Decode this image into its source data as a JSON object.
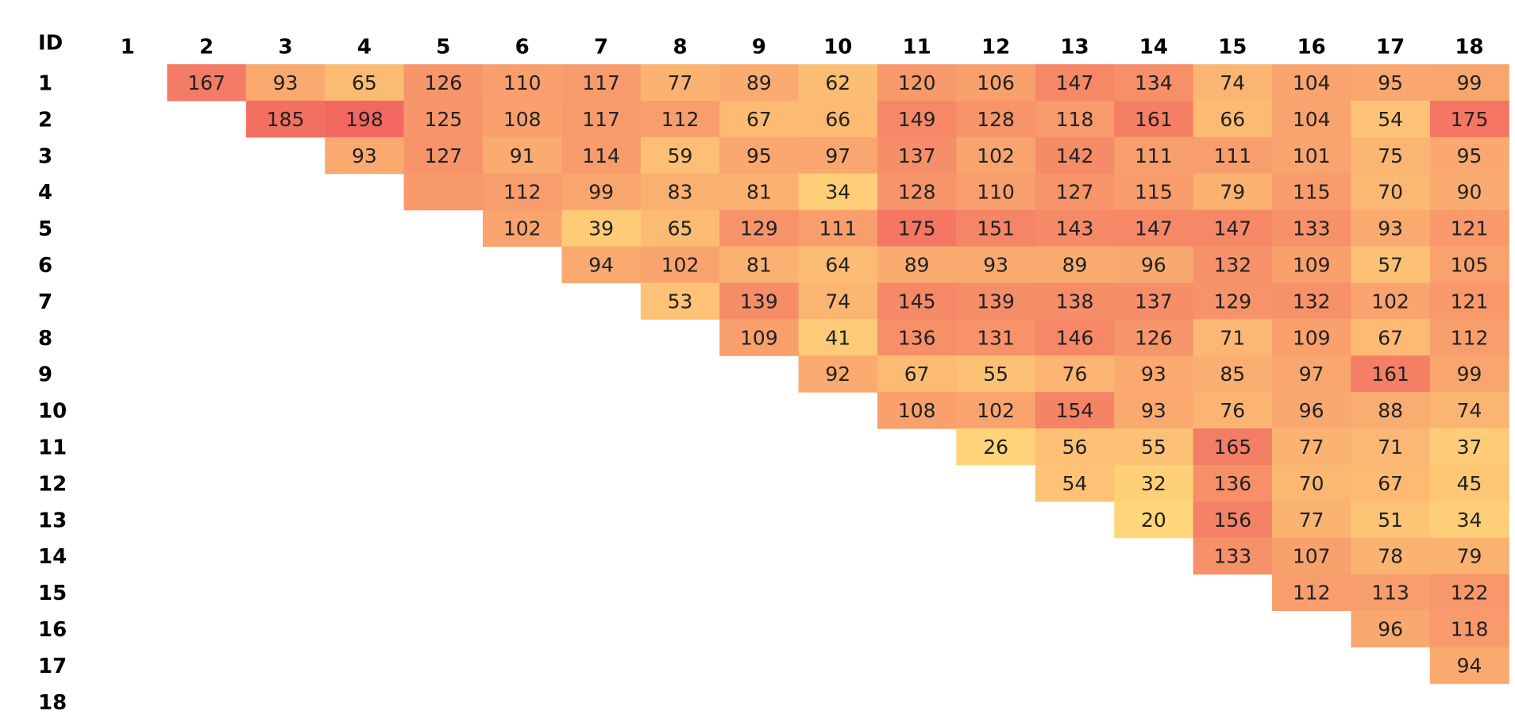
{
  "chart_data": {
    "type": "heatmap",
    "corner_label": "ID",
    "ids": [
      "1",
      "2",
      "3",
      "4",
      "5",
      "6",
      "7",
      "8",
      "9",
      "10",
      "11",
      "12",
      "13",
      "14",
      "15",
      "16",
      "17",
      "18"
    ],
    "rows": [
      {
        "id": "1",
        "values": [
          null,
          167,
          93,
          65,
          126,
          110,
          117,
          77,
          89,
          62,
          120,
          106,
          147,
          134,
          74,
          104,
          95,
          99
        ]
      },
      {
        "id": "2",
        "values": [
          null,
          null,
          185,
          198,
          125,
          108,
          117,
          112,
          67,
          66,
          149,
          128,
          118,
          161,
          66,
          104,
          54,
          175
        ]
      },
      {
        "id": "3",
        "values": [
          null,
          null,
          null,
          93,
          127,
          91,
          114,
          59,
          95,
          97,
          137,
          102,
          142,
          111,
          111,
          101,
          75,
          95
        ]
      },
      {
        "id": "4",
        "values": [
          null,
          null,
          null,
          null,
          null,
          112,
          99,
          83,
          81,
          34,
          128,
          110,
          127,
          115,
          79,
          115,
          70,
          90
        ]
      },
      {
        "id": "5",
        "values": [
          null,
          null,
          null,
          null,
          null,
          102,
          39,
          65,
          129,
          111,
          175,
          151,
          143,
          147,
          147,
          133,
          93,
          121
        ]
      },
      {
        "id": "6",
        "values": [
          null,
          null,
          null,
          null,
          null,
          null,
          94,
          102,
          81,
          64,
          89,
          93,
          89,
          96,
          132,
          109,
          57,
          105
        ]
      },
      {
        "id": "7",
        "values": [
          null,
          null,
          null,
          null,
          null,
          null,
          null,
          53,
          139,
          74,
          145,
          139,
          138,
          137,
          129,
          132,
          102,
          121
        ]
      },
      {
        "id": "8",
        "values": [
          null,
          null,
          null,
          null,
          null,
          null,
          null,
          null,
          109,
          41,
          136,
          131,
          146,
          126,
          71,
          109,
          67,
          112
        ]
      },
      {
        "id": "9",
        "values": [
          null,
          null,
          null,
          null,
          null,
          null,
          null,
          null,
          null,
          92,
          67,
          55,
          76,
          93,
          85,
          97,
          161,
          99
        ]
      },
      {
        "id": "10",
        "values": [
          null,
          null,
          null,
          null,
          null,
          null,
          null,
          null,
          null,
          null,
          108,
          102,
          154,
          93,
          76,
          96,
          88,
          74
        ]
      },
      {
        "id": "11",
        "values": [
          null,
          null,
          null,
          null,
          null,
          null,
          null,
          null,
          null,
          null,
          null,
          26,
          56,
          55,
          165,
          77,
          71,
          37
        ]
      },
      {
        "id": "12",
        "values": [
          null,
          null,
          null,
          null,
          null,
          null,
          null,
          null,
          null,
          null,
          null,
          null,
          54,
          32,
          136,
          70,
          67,
          45
        ]
      },
      {
        "id": "13",
        "values": [
          null,
          null,
          null,
          null,
          null,
          null,
          null,
          null,
          null,
          null,
          null,
          null,
          null,
          20,
          156,
          77,
          51,
          34
        ]
      },
      {
        "id": "14",
        "values": [
          null,
          null,
          null,
          null,
          null,
          null,
          null,
          null,
          null,
          null,
          null,
          null,
          null,
          null,
          133,
          107,
          78,
          79
        ]
      },
      {
        "id": "15",
        "values": [
          null,
          null,
          null,
          null,
          null,
          null,
          null,
          null,
          null,
          null,
          null,
          null,
          null,
          null,
          null,
          112,
          113,
          122
        ]
      },
      {
        "id": "16",
        "values": [
          null,
          null,
          null,
          null,
          null,
          null,
          null,
          null,
          null,
          null,
          null,
          null,
          null,
          null,
          null,
          null,
          96,
          118
        ]
      },
      {
        "id": "17",
        "values": [
          null,
          null,
          null,
          null,
          null,
          null,
          null,
          null,
          null,
          null,
          null,
          null,
          null,
          null,
          null,
          null,
          null,
          94
        ]
      },
      {
        "id": "18",
        "values": [
          null,
          null,
          null,
          null,
          null,
          null,
          null,
          null,
          null,
          null,
          null,
          null,
          null,
          null,
          null,
          null,
          null,
          null
        ]
      }
    ],
    "blank_cells": [
      {
        "row": "4",
        "col": "5"
      }
    ],
    "color_scale": {
      "low": "#ffd77a",
      "high": "#f26860",
      "min": 20,
      "max": 198
    },
    "grid": false,
    "legend": "none"
  }
}
